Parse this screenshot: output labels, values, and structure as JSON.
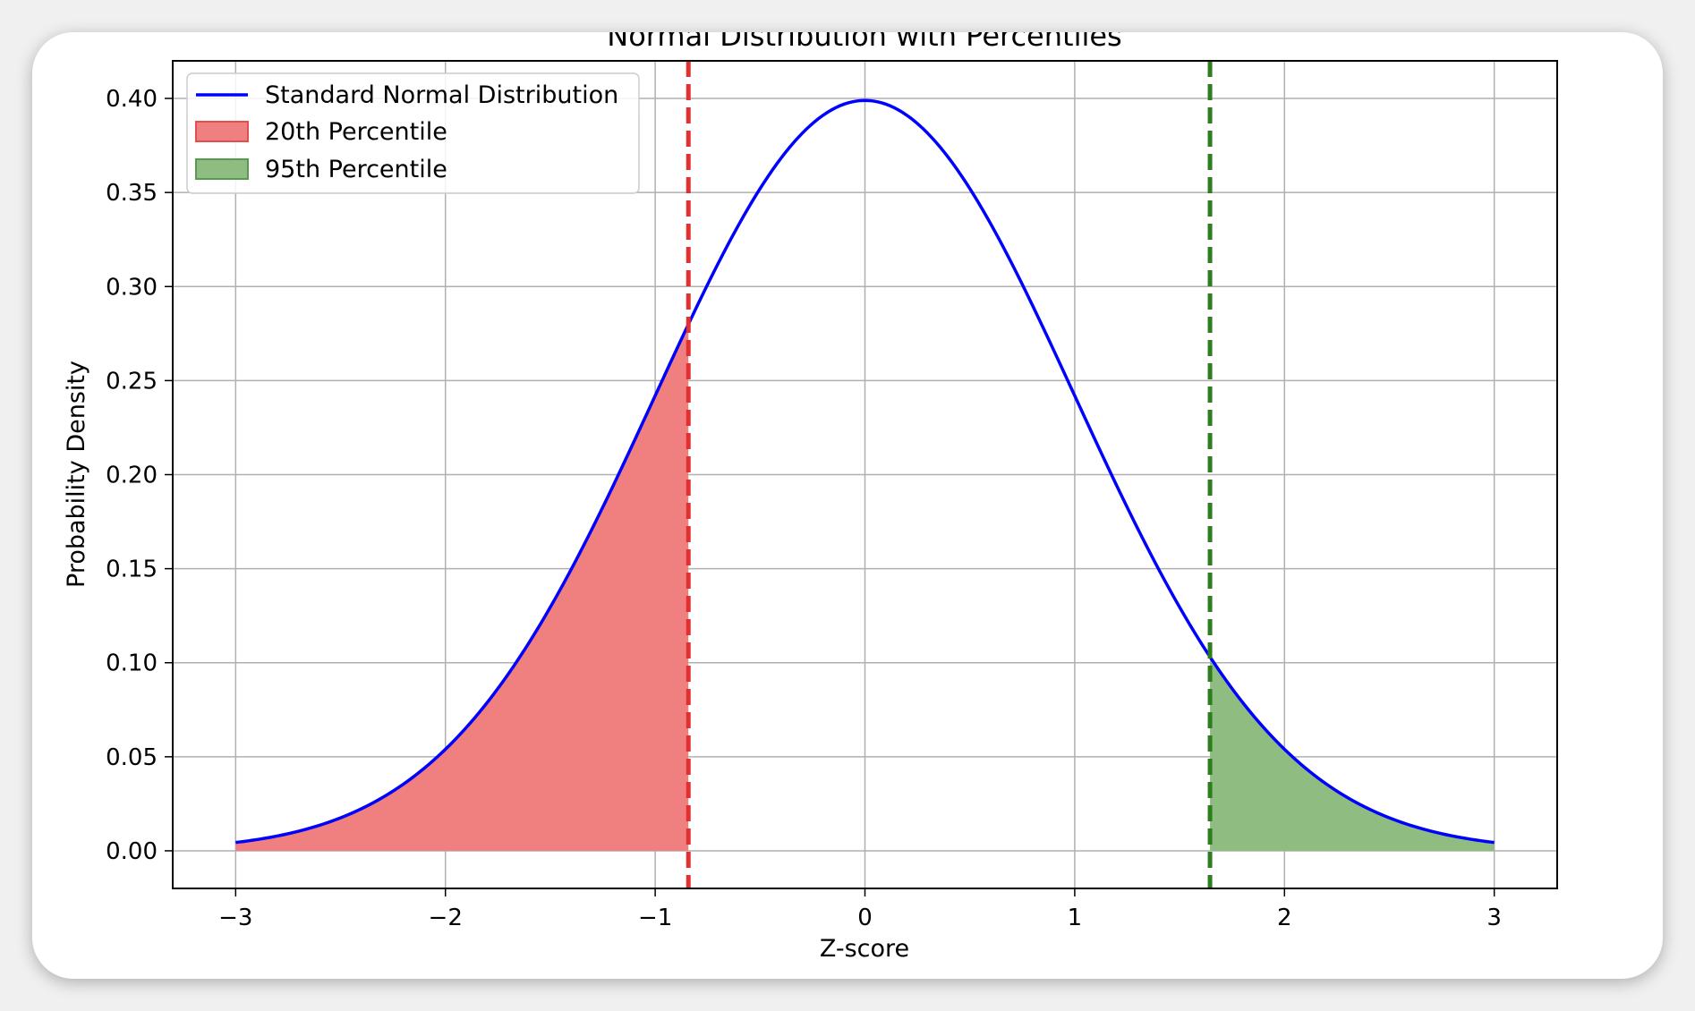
{
  "chart_data": {
    "type": "area",
    "title": "Normal Distribution with Percentiles",
    "xlabel": "Z-score",
    "ylabel": "Probability Density",
    "xlim": [
      -3.3,
      3.3
    ],
    "ylim": [
      -0.02,
      0.42
    ],
    "xticks": [
      -3,
      -2,
      -1,
      0,
      1,
      2,
      3
    ],
    "xtick_labels": [
      "−3",
      "−2",
      "−1",
      "0",
      "1",
      "2",
      "3"
    ],
    "yticks": [
      0.0,
      0.05,
      0.1,
      0.15,
      0.2,
      0.25,
      0.3,
      0.35,
      0.4
    ],
    "ytick_labels": [
      "0.00",
      "0.05",
      "0.10",
      "0.15",
      "0.20",
      "0.25",
      "0.30",
      "0.35",
      "0.40"
    ],
    "grid": true,
    "legend_position": "top-left",
    "series": [
      {
        "name": "Standard Normal Distribution",
        "kind": "line",
        "color": "#0000ff",
        "x": [
          -3.0,
          -2.75,
          -2.5,
          -2.25,
          -2.0,
          -1.75,
          -1.5,
          -1.25,
          -1.0,
          -0.75,
          -0.5,
          -0.25,
          0.0,
          0.25,
          0.5,
          0.75,
          1.0,
          1.25,
          1.5,
          1.75,
          2.0,
          2.25,
          2.5,
          2.75,
          3.0
        ],
        "y": [
          0.0044,
          0.0091,
          0.0175,
          0.0317,
          0.054,
          0.0863,
          0.1295,
          0.1826,
          0.242,
          0.3011,
          0.3521,
          0.3867,
          0.3989,
          0.3867,
          0.3521,
          0.3011,
          0.242,
          0.1826,
          0.1295,
          0.0863,
          0.054,
          0.0317,
          0.0175,
          0.0091,
          0.0044
        ]
      },
      {
        "name": "20th Percentile",
        "kind": "fill",
        "color": "#f08080",
        "edge_color": "#e05050",
        "from": -3.0,
        "to": -0.8416
      },
      {
        "name": "95th Percentile",
        "kind": "fill",
        "color": "#8fbc80",
        "edge_color": "#5a9a50",
        "from": 1.6449,
        "to": 3.0
      }
    ],
    "vlines": [
      {
        "x": -0.8416,
        "color": "#e03030",
        "style": "dashed"
      },
      {
        "x": 1.6449,
        "color": "#2e7d1e",
        "style": "dashed"
      }
    ]
  }
}
